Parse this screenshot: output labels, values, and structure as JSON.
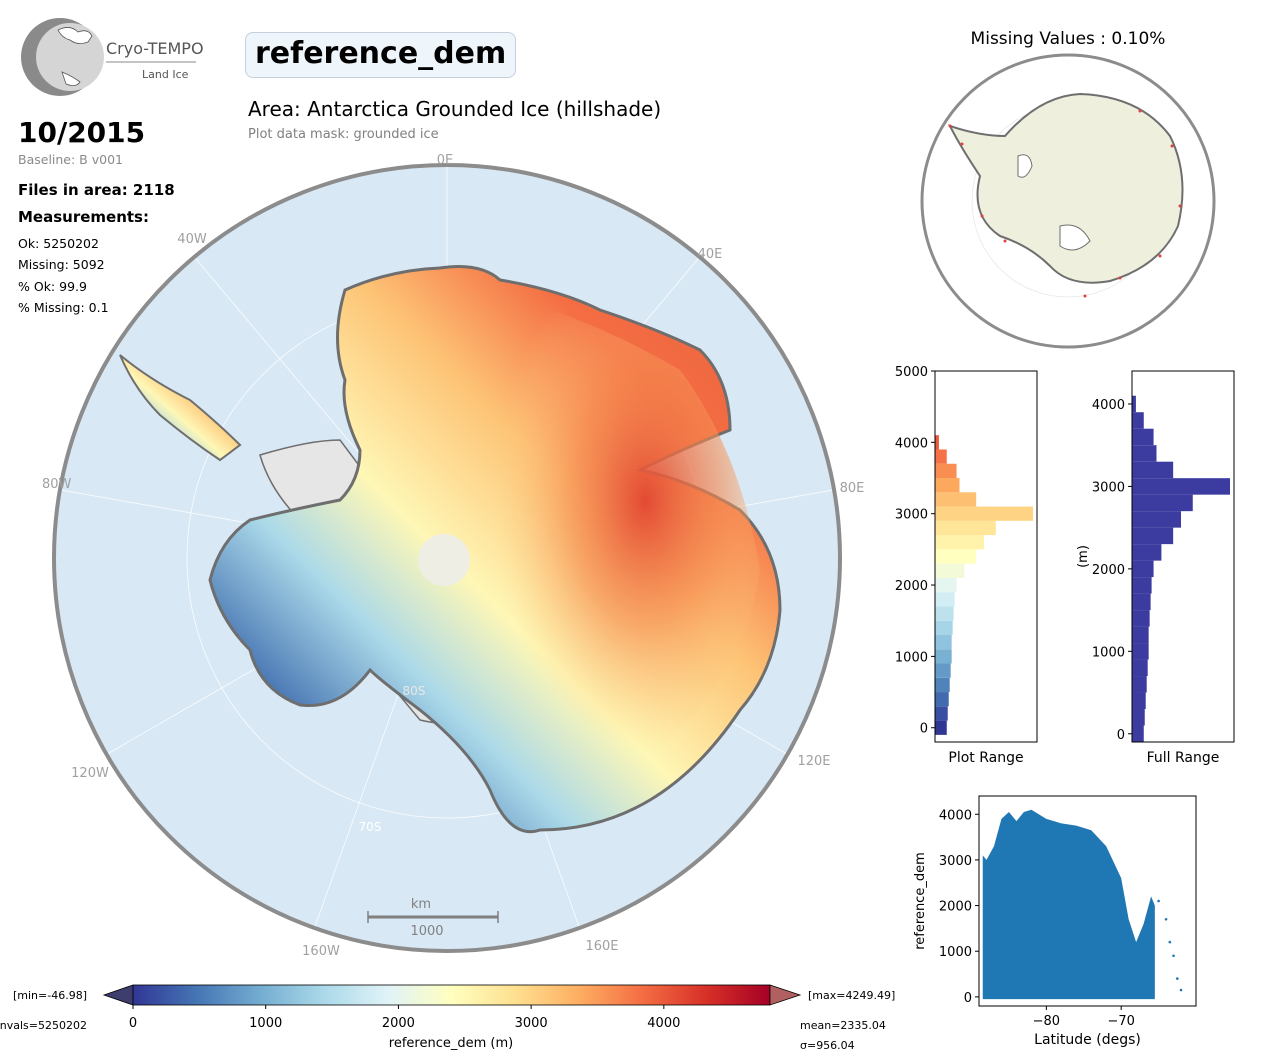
{
  "header": {
    "logo_text": "Cryo-TEMPO",
    "logo_subtext": "Land Ice",
    "product_name": "reference_dem",
    "area_title": "Area: Antarctica Grounded Ice (hillshade)",
    "mask_text": "Plot data mask: grounded ice"
  },
  "stats": {
    "date": "10/2015",
    "baseline": "Baseline: B v001",
    "files_in_area": "Files in area: 2118",
    "measurements_title": "Measurements:",
    "ok": "Ok: 5250202",
    "missing": "Missing: 5092",
    "pct_ok": "% Ok: 99.9",
    "pct_missing": "% Missing: 0.1"
  },
  "map": {
    "scale_label_km": "km",
    "scale_label_value": "1000",
    "lon_labels": [
      "0E",
      "40E",
      "80E",
      "120E",
      "160E",
      "160W",
      "120W",
      "80W",
      "40W"
    ],
    "lat_labels": [
      "80S",
      "70S"
    ],
    "colors": {
      "ocean": "#d8e8f5",
      "rim": "#8c8c8c",
      "coast": "#6e6e6e",
      "ice_shelf": "#e6e6e6"
    }
  },
  "inset": {
    "title": "Missing Values : 0.10%",
    "colors": {
      "land": "#efefde",
      "missing_points": "#e04040"
    }
  },
  "colorbar": {
    "label": "reference_dem (m)",
    "min_label": "[min=-46.98]",
    "max_label": "[max=4249.49]",
    "nvals_label": "nvals=5250202",
    "mean_label": "mean=2335.04",
    "sigma_label": "σ=956.04",
    "colormap": "RdYlBu_r",
    "range": [
      0,
      4800
    ],
    "ticks": [
      0,
      1000,
      2000,
      3000,
      4000
    ],
    "tick_labels": [
      "0",
      "1000",
      "2000",
      "3000",
      "4000"
    ]
  },
  "chart_data": [
    {
      "type": "bar",
      "orientation": "horizontal",
      "title": "",
      "xlabel": "Plot Range",
      "ylabel": "",
      "ylim": [
        -200,
        5000
      ],
      "yticks": [
        0,
        1000,
        2000,
        3000,
        4000,
        5000
      ],
      "bin_centers": [
        0,
        200,
        400,
        600,
        800,
        1000,
        1200,
        1400,
        1600,
        1800,
        2000,
        2200,
        2400,
        2600,
        2800,
        3000,
        3200,
        3400,
        3600,
        3800,
        4000
      ],
      "values": [
        0.12,
        0.13,
        0.14,
        0.15,
        0.16,
        0.17,
        0.17,
        0.18,
        0.19,
        0.2,
        0.22,
        0.3,
        0.42,
        0.5,
        0.62,
        1.0,
        0.42,
        0.25,
        0.22,
        0.12,
        0.04
      ],
      "colormap": "RdYlBu_r"
    },
    {
      "type": "bar",
      "orientation": "horizontal",
      "title": "",
      "xlabel": "Full Range",
      "ylabel": "(m)",
      "ylim": [
        -100,
        4400
      ],
      "yticks": [
        0,
        1000,
        2000,
        3000,
        4000
      ],
      "bin_centers": [
        0,
        200,
        400,
        600,
        800,
        1000,
        1200,
        1400,
        1600,
        1800,
        2000,
        2200,
        2400,
        2600,
        2800,
        3000,
        3200,
        3400,
        3600,
        3800,
        4000
      ],
      "values": [
        0.12,
        0.13,
        0.14,
        0.15,
        0.16,
        0.17,
        0.17,
        0.18,
        0.19,
        0.2,
        0.22,
        0.3,
        0.42,
        0.5,
        0.62,
        1.0,
        0.42,
        0.25,
        0.22,
        0.12,
        0.04
      ],
      "color": "#3b3ba0"
    },
    {
      "type": "scatter",
      "title": "",
      "xlabel": "Latitude (degs)",
      "ylabel": "reference_dem",
      "xlim": [
        -89,
        -60
      ],
      "ylim": [
        -200,
        4400
      ],
      "xticks": [
        -80,
        -70
      ],
      "yticks": [
        0,
        1000,
        2000,
        3000,
        4000
      ],
      "color": "#1f77b4",
      "upper_envelope": {
        "x": [
          -88.5,
          -88,
          -87,
          -86,
          -85,
          -84,
          -83,
          -82,
          -80,
          -78,
          -76,
          -74,
          -72,
          -70,
          -69,
          -68,
          -67,
          -66,
          -65.5
        ],
        "y": [
          3100,
          3000,
          3300,
          3900,
          4050,
          3850,
          4050,
          4100,
          3900,
          3800,
          3750,
          3650,
          3300,
          2600,
          1700,
          1200,
          1600,
          2200,
          2000
        ]
      },
      "x_range": [
        -88.5,
        -61.5
      ],
      "y_min": -50
    }
  ]
}
